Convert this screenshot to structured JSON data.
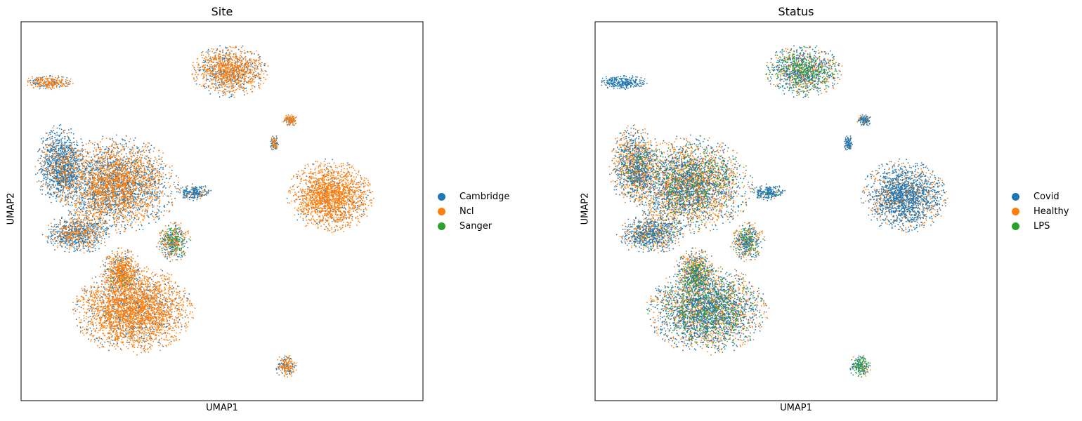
{
  "figure": {
    "width": 1540,
    "height": 600
  },
  "chart_data": [
    {
      "type": "scatter",
      "title": "Site",
      "xlabel": "UMAP1",
      "ylabel": "UMAP2",
      "grid": false,
      "ticks": false,
      "legend_position": "right-outside",
      "legend": [
        {
          "name": "Cambridge",
          "color": "#1f77b4"
        },
        {
          "name": "Ncl",
          "color": "#ff7f0e"
        },
        {
          "name": "Sanger",
          "color": "#2ca02c"
        }
      ],
      "clusters": [
        {
          "cx": 0.1,
          "cy": 0.62,
          "rx": 0.06,
          "ry": 0.1,
          "w": [
            0.8,
            0.2,
            0.0
          ]
        },
        {
          "cx": 0.24,
          "cy": 0.57,
          "rx": 0.14,
          "ry": 0.12,
          "w": [
            0.45,
            0.55,
            0.0
          ]
        },
        {
          "cx": 0.14,
          "cy": 0.44,
          "rx": 0.08,
          "ry": 0.05,
          "w": [
            0.6,
            0.4,
            0.0
          ]
        },
        {
          "cx": 0.28,
          "cy": 0.24,
          "rx": 0.14,
          "ry": 0.11,
          "w": [
            0.2,
            0.8,
            0.0
          ]
        },
        {
          "cx": 0.25,
          "cy": 0.34,
          "rx": 0.05,
          "ry": 0.06,
          "w": [
            0.25,
            0.72,
            0.03
          ]
        },
        {
          "cx": 0.38,
          "cy": 0.42,
          "rx": 0.04,
          "ry": 0.05,
          "w": [
            0.45,
            0.35,
            0.2
          ]
        },
        {
          "cx": 0.43,
          "cy": 0.55,
          "rx": 0.04,
          "ry": 0.02,
          "w": [
            0.9,
            0.1,
            0.0
          ]
        },
        {
          "cx": 0.52,
          "cy": 0.87,
          "rx": 0.09,
          "ry": 0.065,
          "w": [
            0.3,
            0.7,
            0.0
          ]
        },
        {
          "cx": 0.77,
          "cy": 0.54,
          "rx": 0.1,
          "ry": 0.09,
          "w": [
            0.1,
            0.9,
            0.0
          ]
        },
        {
          "cx": 0.07,
          "cy": 0.84,
          "rx": 0.06,
          "ry": 0.018,
          "w": [
            0.3,
            0.7,
            0.0
          ]
        },
        {
          "cx": 0.67,
          "cy": 0.74,
          "rx": 0.02,
          "ry": 0.015,
          "w": [
            0.4,
            0.6,
            0.0
          ]
        },
        {
          "cx": 0.63,
          "cy": 0.68,
          "rx": 0.01,
          "ry": 0.02,
          "w": [
            0.4,
            0.6,
            0.0
          ]
        },
        {
          "cx": 0.66,
          "cy": 0.09,
          "rx": 0.025,
          "ry": 0.03,
          "w": [
            0.4,
            0.6,
            0.0
          ]
        }
      ]
    },
    {
      "type": "scatter",
      "title": "Status",
      "xlabel": "UMAP1",
      "ylabel": "UMAP2",
      "grid": false,
      "ticks": false,
      "legend_position": "right-outside",
      "legend": [
        {
          "name": "Covid",
          "color": "#1f77b4"
        },
        {
          "name": "Healthy",
          "color": "#ff7f0e"
        },
        {
          "name": "LPS",
          "color": "#2ca02c"
        }
      ],
      "clusters": [
        {
          "cx": 0.1,
          "cy": 0.62,
          "rx": 0.06,
          "ry": 0.1,
          "w": [
            0.45,
            0.5,
            0.05
          ]
        },
        {
          "cx": 0.24,
          "cy": 0.57,
          "rx": 0.14,
          "ry": 0.12,
          "w": [
            0.4,
            0.5,
            0.1
          ]
        },
        {
          "cx": 0.14,
          "cy": 0.44,
          "rx": 0.08,
          "ry": 0.05,
          "w": [
            0.55,
            0.4,
            0.05
          ]
        },
        {
          "cx": 0.28,
          "cy": 0.24,
          "rx": 0.14,
          "ry": 0.11,
          "w": [
            0.5,
            0.35,
            0.15
          ]
        },
        {
          "cx": 0.25,
          "cy": 0.34,
          "rx": 0.05,
          "ry": 0.06,
          "w": [
            0.35,
            0.45,
            0.2
          ]
        },
        {
          "cx": 0.38,
          "cy": 0.42,
          "rx": 0.04,
          "ry": 0.05,
          "w": [
            0.45,
            0.4,
            0.15
          ]
        },
        {
          "cx": 0.43,
          "cy": 0.55,
          "rx": 0.04,
          "ry": 0.02,
          "w": [
            0.9,
            0.05,
            0.05
          ]
        },
        {
          "cx": 0.52,
          "cy": 0.87,
          "rx": 0.09,
          "ry": 0.065,
          "w": [
            0.45,
            0.3,
            0.25
          ]
        },
        {
          "cx": 0.77,
          "cy": 0.54,
          "rx": 0.1,
          "ry": 0.09,
          "w": [
            0.7,
            0.3,
            0.0
          ]
        },
        {
          "cx": 0.07,
          "cy": 0.84,
          "rx": 0.06,
          "ry": 0.018,
          "w": [
            0.95,
            0.05,
            0.0
          ]
        },
        {
          "cx": 0.67,
          "cy": 0.74,
          "rx": 0.02,
          "ry": 0.015,
          "w": [
            0.7,
            0.3,
            0.0
          ]
        },
        {
          "cx": 0.63,
          "cy": 0.68,
          "rx": 0.01,
          "ry": 0.02,
          "w": [
            0.8,
            0.2,
            0.0
          ]
        },
        {
          "cx": 0.66,
          "cy": 0.09,
          "rx": 0.025,
          "ry": 0.03,
          "w": [
            0.4,
            0.2,
            0.4
          ]
        }
      ]
    }
  ]
}
